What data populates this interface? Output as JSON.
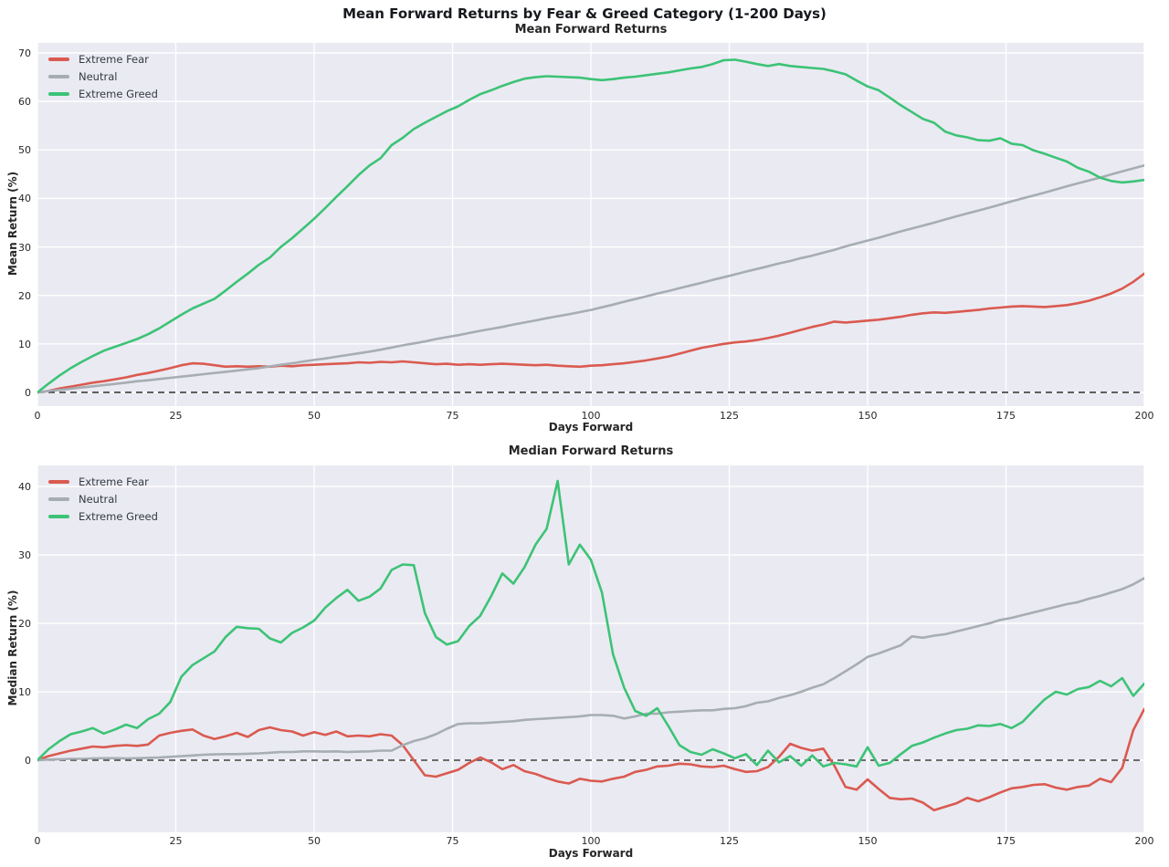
{
  "figure": {
    "suptitle": "Mean Forward Returns by Fear & Greed Category (1-200 Days)",
    "style": {
      "plot_background": "#eaeaf2",
      "grid_color": "#ffffff",
      "zero_line_color": "#1c1c1c",
      "title_color": "#262626",
      "tick_color": "#262626"
    }
  },
  "chart_data": [
    {
      "type": "line",
      "title": "Mean Forward Returns",
      "xlabel": "Days Forward",
      "ylabel": "Mean Return (%)",
      "xlim": [
        0,
        200
      ],
      "ylim": [
        -2.83,
        72.07
      ],
      "xticks": [
        0,
        25,
        50,
        75,
        100,
        125,
        150,
        175,
        200
      ],
      "yticks": [
        0,
        10,
        20,
        30,
        40,
        50,
        60,
        70
      ],
      "grid": true,
      "zero_line": true,
      "legend_position": "upper-left",
      "x": [
        0,
        2,
        4,
        6,
        8,
        10,
        12,
        14,
        16,
        18,
        20,
        22,
        24,
        26,
        28,
        30,
        32,
        34,
        36,
        38,
        40,
        42,
        44,
        46,
        48,
        50,
        52,
        54,
        56,
        58,
        60,
        62,
        64,
        66,
        68,
        70,
        72,
        74,
        76,
        78,
        80,
        82,
        84,
        86,
        88,
        90,
        92,
        94,
        96,
        98,
        100,
        102,
        104,
        106,
        108,
        110,
        112,
        114,
        116,
        118,
        120,
        122,
        124,
        126,
        128,
        130,
        132,
        134,
        136,
        138,
        140,
        142,
        144,
        146,
        148,
        150,
        152,
        154,
        156,
        158,
        160,
        162,
        164,
        166,
        168,
        170,
        172,
        174,
        176,
        178,
        180,
        182,
        184,
        186,
        188,
        190,
        192,
        194,
        196,
        198,
        200
      ],
      "series": [
        {
          "name": "Extreme Fear",
          "color": "#da5a50",
          "values": [
            0,
            0.3,
            0.8,
            1.2,
            1.6,
            2.0,
            2.3,
            2.7,
            3.1,
            3.6,
            4.0,
            4.5,
            5.0,
            5.6,
            6.0,
            5.9,
            5.6,
            5.3,
            5.4,
            5.3,
            5.4,
            5.3,
            5.5,
            5.4,
            5.6,
            5.7,
            5.8,
            5.9,
            6.0,
            6.2,
            6.1,
            6.3,
            6.2,
            6.4,
            6.2,
            6.0,
            5.8,
            5.9,
            5.7,
            5.8,
            5.7,
            5.8,
            5.9,
            5.8,
            5.7,
            5.6,
            5.7,
            5.5,
            5.4,
            5.3,
            5.5,
            5.6,
            5.8,
            6.0,
            6.3,
            6.6,
            7.0,
            7.4,
            8.0,
            8.6,
            9.2,
            9.6,
            10.0,
            10.3,
            10.5,
            10.8,
            11.2,
            11.7,
            12.3,
            12.9,
            13.5,
            14.0,
            14.6,
            14.4,
            14.6,
            14.8,
            15.0,
            15.3,
            15.6,
            16.0,
            16.3,
            16.5,
            16.4,
            16.6,
            16.8,
            17.0,
            17.3,
            17.5,
            17.7,
            17.8,
            17.7,
            17.6,
            17.8,
            18.0,
            18.4,
            18.9,
            19.6,
            20.4,
            21.4,
            22.8,
            24.5
          ]
        },
        {
          "name": "Neutral",
          "color": "#a6adb3",
          "values": [
            0,
            0.25,
            0.5,
            0.75,
            1.0,
            1.25,
            1.5,
            1.75,
            2.0,
            2.3,
            2.5,
            2.75,
            3.0,
            3.25,
            3.5,
            3.75,
            4.0,
            4.25,
            4.5,
            4.75,
            5.0,
            5.35,
            5.7,
            6.0,
            6.35,
            6.7,
            7.0,
            7.35,
            7.7,
            8.05,
            8.4,
            8.8,
            9.25,
            9.7,
            10.1,
            10.5,
            11.0,
            11.4,
            11.8,
            12.25,
            12.7,
            13.1,
            13.5,
            14.0,
            14.4,
            14.85,
            15.3,
            15.7,
            16.1,
            16.55,
            17.0,
            17.55,
            18.1,
            18.7,
            19.25,
            19.8,
            20.4,
            20.9,
            21.5,
            22.05,
            22.6,
            23.2,
            23.75,
            24.3,
            24.9,
            25.45,
            26.0,
            26.6,
            27.1,
            27.7,
            28.2,
            28.8,
            29.4,
            30.1,
            30.7,
            31.3,
            31.9,
            32.55,
            33.2,
            33.8,
            34.4,
            35.0,
            35.65,
            36.3,
            36.9,
            37.5,
            38.1,
            38.75,
            39.4,
            40.0,
            40.6,
            41.2,
            41.85,
            42.5,
            43.1,
            43.7,
            44.3,
            44.95,
            45.6,
            46.2,
            46.8
          ]
        },
        {
          "name": "Extreme Greed",
          "color": "#3cc376",
          "values": [
            0,
            1.8,
            3.5,
            5.0,
            6.3,
            7.5,
            8.6,
            9.4,
            10.2,
            11.0,
            12.0,
            13.2,
            14.6,
            16.0,
            17.3,
            18.3,
            19.3,
            21.0,
            22.8,
            24.5,
            26.3,
            27.8,
            30.0,
            31.8,
            33.8,
            35.8,
            38.0,
            40.3,
            42.5,
            44.8,
            46.8,
            48.3,
            51.0,
            52.5,
            54.3,
            55.6,
            56.8,
            58.0,
            59.0,
            60.3,
            61.5,
            62.3,
            63.2,
            64.0,
            64.7,
            65.0,
            65.2,
            65.1,
            65.0,
            64.9,
            64.6,
            64.4,
            64.6,
            64.9,
            65.1,
            65.4,
            65.7,
            66.0,
            66.4,
            66.8,
            67.1,
            67.7,
            68.5,
            68.6,
            68.2,
            67.7,
            67.3,
            67.7,
            67.3,
            67.1,
            66.9,
            66.7,
            66.2,
            65.6,
            64.3,
            63.1,
            62.3,
            60.8,
            59.2,
            57.8,
            56.4,
            55.6,
            53.8,
            53.0,
            52.6,
            52.0,
            51.9,
            52.4,
            51.3,
            51.0,
            49.9,
            49.2,
            48.4,
            47.6,
            46.3,
            45.5,
            44.3,
            43.6,
            43.3,
            43.5,
            43.8
          ]
        }
      ]
    },
    {
      "type": "line",
      "title": "Median Forward Returns",
      "xlabel": "Days Forward",
      "ylabel": "Median Return (%)",
      "xlim": [
        0,
        200
      ],
      "ylim": [
        -10.53,
        43.07
      ],
      "xticks": [
        0,
        25,
        50,
        75,
        100,
        125,
        150,
        175,
        200
      ],
      "yticks": [
        0,
        10,
        20,
        30,
        40
      ],
      "grid": true,
      "zero_line": true,
      "legend_position": "upper-left",
      "x": [
        0,
        2,
        4,
        6,
        8,
        10,
        12,
        14,
        16,
        18,
        20,
        22,
        24,
        26,
        28,
        30,
        32,
        34,
        36,
        38,
        40,
        42,
        44,
        46,
        48,
        50,
        52,
        54,
        56,
        58,
        60,
        62,
        64,
        66,
        68,
        70,
        72,
        74,
        76,
        78,
        80,
        82,
        84,
        86,
        88,
        90,
        92,
        94,
        96,
        98,
        100,
        102,
        104,
        106,
        108,
        110,
        112,
        114,
        116,
        118,
        120,
        122,
        124,
        126,
        128,
        130,
        132,
        134,
        136,
        138,
        140,
        142,
        144,
        146,
        148,
        150,
        152,
        154,
        156,
        158,
        160,
        162,
        164,
        166,
        168,
        170,
        172,
        174,
        176,
        178,
        180,
        182,
        184,
        186,
        188,
        190,
        192,
        194,
        196,
        198,
        200
      ],
      "series": [
        {
          "name": "Extreme Fear",
          "color": "#da5a50",
          "values": [
            0,
            0.6,
            1.0,
            1.4,
            1.7,
            2.0,
            1.9,
            2.1,
            2.2,
            2.1,
            2.3,
            3.6,
            4.0,
            4.3,
            4.5,
            3.6,
            3.1,
            3.5,
            4.0,
            3.4,
            4.4,
            4.8,
            4.4,
            4.2,
            3.6,
            4.1,
            3.7,
            4.2,
            3.5,
            3.6,
            3.5,
            3.8,
            3.6,
            2.2,
            0.0,
            -2.2,
            -2.4,
            -1.9,
            -1.4,
            -0.4,
            0.4,
            -0.3,
            -1.3,
            -0.7,
            -1.6,
            -2.0,
            -2.6,
            -3.1,
            -3.4,
            -2.7,
            -3.0,
            -3.1,
            -2.7,
            -2.4,
            -1.7,
            -1.4,
            -0.9,
            -0.8,
            -0.5,
            -0.6,
            -0.9,
            -1.0,
            -0.8,
            -1.3,
            -1.7,
            -1.6,
            -1.0,
            0.5,
            2.4,
            1.8,
            1.4,
            1.7,
            -0.8,
            -3.9,
            -4.3,
            -2.8,
            -4.2,
            -5.5,
            -5.7,
            -5.6,
            -6.2,
            -7.3,
            -6.8,
            -6.3,
            -5.5,
            -6.0,
            -5.4,
            -4.7,
            -4.1,
            -3.9,
            -3.6,
            -3.5,
            -4.0,
            -4.3,
            -3.9,
            -3.7,
            -2.7,
            -3.2,
            -1.1,
            4.4,
            7.5
          ]
        },
        {
          "name": "Neutral",
          "color": "#a6adb3",
          "values": [
            0,
            0.1,
            0.15,
            0.2,
            0.2,
            0.25,
            0.3,
            0.3,
            0.25,
            0.3,
            0.35,
            0.4,
            0.5,
            0.6,
            0.7,
            0.8,
            0.85,
            0.9,
            0.9,
            0.95,
            1.0,
            1.1,
            1.2,
            1.2,
            1.3,
            1.3,
            1.25,
            1.3,
            1.2,
            1.25,
            1.3,
            1.4,
            1.4,
            2.2,
            2.8,
            3.2,
            3.8,
            4.6,
            5.3,
            5.4,
            5.4,
            5.5,
            5.6,
            5.7,
            5.9,
            6.0,
            6.1,
            6.2,
            6.3,
            6.4,
            6.6,
            6.6,
            6.5,
            6.1,
            6.4,
            6.8,
            6.8,
            7.0,
            7.1,
            7.2,
            7.3,
            7.3,
            7.5,
            7.6,
            7.9,
            8.4,
            8.6,
            9.1,
            9.5,
            10.0,
            10.6,
            11.1,
            12.0,
            13.0,
            14.0,
            15.1,
            15.6,
            16.2,
            16.8,
            18.1,
            17.9,
            18.2,
            18.4,
            18.8,
            19.2,
            19.6,
            20.0,
            20.5,
            20.8,
            21.2,
            21.6,
            22.0,
            22.4,
            22.8,
            23.1,
            23.6,
            24.0,
            24.5,
            25.0,
            25.7,
            26.6
          ]
        },
        {
          "name": "Extreme Greed",
          "color": "#3cc376",
          "values": [
            0,
            1.6,
            2.8,
            3.8,
            4.2,
            4.7,
            3.9,
            4.5,
            5.2,
            4.7,
            6.0,
            6.8,
            8.5,
            12.2,
            13.9,
            14.9,
            15.9,
            18.0,
            19.5,
            19.3,
            19.2,
            17.8,
            17.2,
            18.6,
            19.4,
            20.4,
            22.3,
            23.7,
            24.9,
            23.3,
            23.9,
            25.1,
            27.8,
            28.6,
            28.5,
            21.5,
            18.0,
            16.9,
            17.4,
            19.6,
            21.1,
            24.0,
            27.3,
            25.8,
            28.2,
            31.5,
            33.8,
            40.8,
            28.6,
            31.5,
            29.3,
            24.5,
            15.5,
            10.6,
            7.2,
            6.5,
            7.6,
            5.0,
            2.2,
            1.2,
            0.8,
            1.6,
            1.0,
            0.3,
            0.9,
            -0.7,
            1.4,
            -0.3,
            0.6,
            -0.8,
            0.7,
            -0.9,
            -0.4,
            -0.6,
            -0.9,
            1.9,
            -0.8,
            -0.4,
            0.9,
            2.1,
            2.6,
            3.3,
            3.9,
            4.4,
            4.6,
            5.1,
            5.0,
            5.3,
            4.7,
            5.6,
            7.3,
            8.9,
            10.0,
            9.6,
            10.4,
            10.7,
            11.6,
            10.8,
            12.0,
            9.4,
            11.2
          ]
        }
      ]
    }
  ]
}
